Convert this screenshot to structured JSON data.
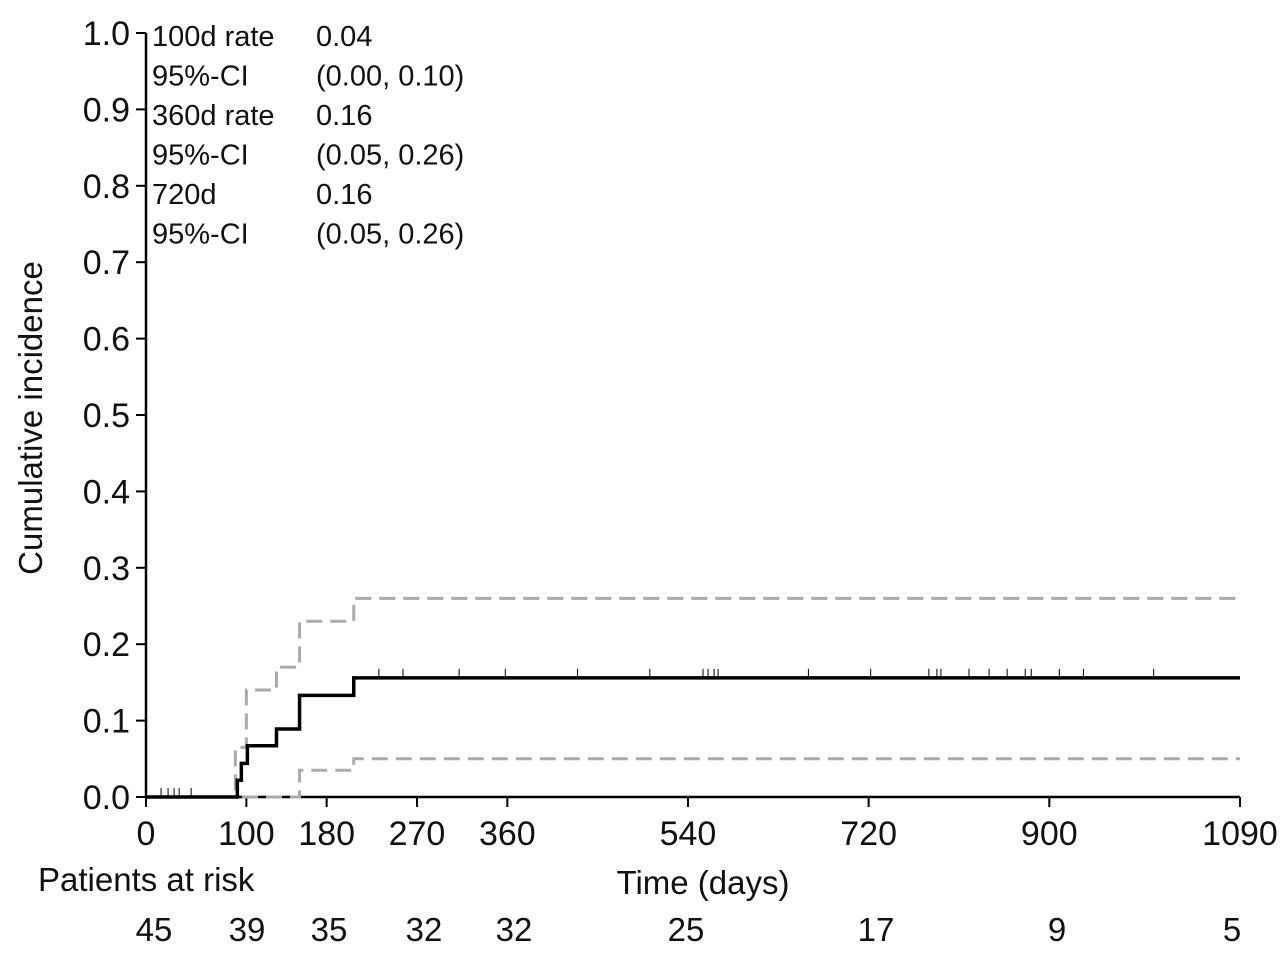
{
  "chart_data": {
    "type": "line",
    "title": "",
    "xlabel": "Time (days)",
    "ylabel": "Cumulative incidence",
    "xlim": [
      0,
      1090
    ],
    "ylim": [
      0,
      1.0
    ],
    "x_ticks": [
      0,
      100,
      180,
      270,
      360,
      540,
      720,
      900,
      1090
    ],
    "y_ticks": [
      "0.0",
      "0.1",
      "0.2",
      "0.3",
      "0.4",
      "0.5",
      "0.6",
      "0.7",
      "0.8",
      "0.9",
      "1.0"
    ],
    "grid": false,
    "legend": null,
    "series": [
      {
        "name": "Cumulative incidence",
        "style": "solid",
        "color": "#000000",
        "step_x": [
          0,
          91,
          95,
          101,
          130,
          153,
          207,
          1090
        ],
        "step_y": [
          0.0,
          0.022,
          0.044,
          0.067,
          0.089,
          0.133,
          0.156,
          0.156
        ]
      },
      {
        "name": "Upper 95% CI",
        "style": "dashed",
        "color": "#aaaaaa",
        "step_x": [
          0,
          89,
          100,
          130,
          153,
          207,
          1090
        ],
        "step_y": [
          0.0,
          0.065,
          0.14,
          0.17,
          0.23,
          0.26,
          0.26
        ]
      },
      {
        "name": "Lower 95% CI",
        "style": "dashed",
        "color": "#aaaaaa",
        "step_x": [
          0,
          153,
          207,
          1090
        ],
        "step_y": [
          0.0,
          0.035,
          0.05,
          0.05
        ]
      }
    ],
    "censor_marks_x": [
      15,
      22,
      28,
      33,
      45,
      232,
      256,
      312,
      358,
      430,
      502,
      555,
      560,
      566,
      570,
      660,
      722,
      780,
      788,
      792,
      820,
      840,
      858,
      876,
      882,
      910,
      934,
      1004
    ],
    "censor_y": 0.156,
    "annotations": [
      {
        "label": "100d rate",
        "value": "0.04"
      },
      {
        "label": "95%-CI",
        "value": "(0.00, 0.10)"
      },
      {
        "label": "360d rate",
        "value": "0.16"
      },
      {
        "label": "95%-CI",
        "value": "(0.05, 0.26)"
      },
      {
        "label": "720d",
        "value": "0.16"
      },
      {
        "label": "95%-CI",
        "value": "(0.05, 0.26)"
      }
    ],
    "risk_table": {
      "title": "Patients at risk",
      "counts": [
        "45",
        "39",
        "35",
        "32",
        "32",
        "25",
        "17",
        "9",
        "5"
      ]
    }
  }
}
